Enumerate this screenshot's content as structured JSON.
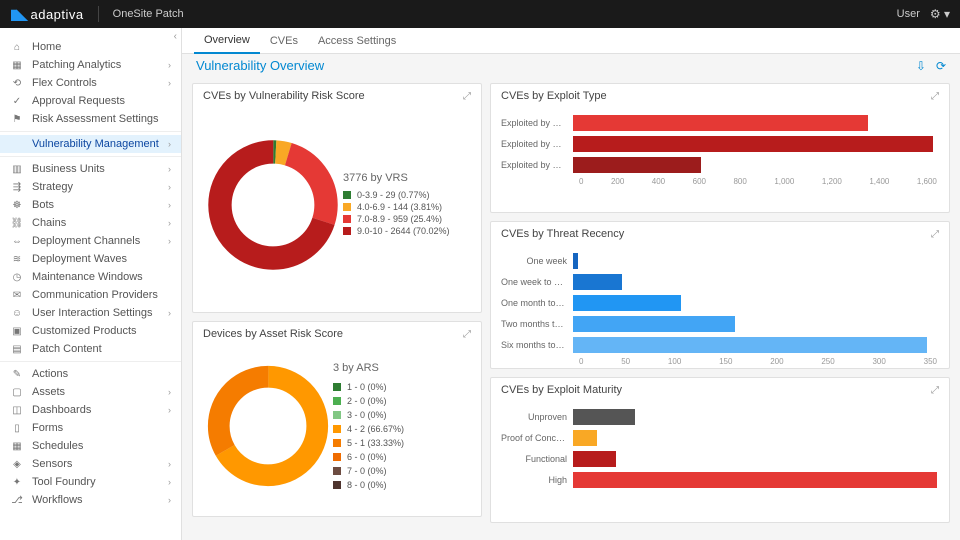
{
  "header": {
    "brand": "adaptiva",
    "app": "OneSite Patch",
    "user": "User"
  },
  "sidebar": {
    "items": [
      {
        "icon": "⌂",
        "label": "Home",
        "chev": false
      },
      {
        "icon": "▦",
        "label": "Patching Analytics",
        "chev": true
      },
      {
        "icon": "⟲",
        "label": "Flex Controls",
        "chev": true
      },
      {
        "icon": "✓",
        "label": "Approval Requests",
        "chev": false
      },
      {
        "icon": "⚑",
        "label": "Risk Assessment Settings",
        "chev": false
      },
      {
        "sep": true
      },
      {
        "icon": "",
        "label": "Vulnerability Management",
        "chev": true,
        "active": true
      },
      {
        "sep": true
      },
      {
        "icon": "▥",
        "label": "Business Units",
        "chev": true
      },
      {
        "icon": "⇶",
        "label": "Strategy",
        "chev": true
      },
      {
        "icon": "☸",
        "label": "Bots",
        "chev": true
      },
      {
        "icon": "⛓",
        "label": "Chains",
        "chev": true
      },
      {
        "icon": "⇔",
        "label": "Deployment Channels",
        "chev": true
      },
      {
        "icon": "≋",
        "label": "Deployment Waves",
        "chev": false
      },
      {
        "icon": "◷",
        "label": "Maintenance Windows",
        "chev": false
      },
      {
        "icon": "✉",
        "label": "Communication Providers",
        "chev": false
      },
      {
        "icon": "☺",
        "label": "User Interaction Settings",
        "chev": true
      },
      {
        "icon": "▣",
        "label": "Customized Products",
        "chev": false
      },
      {
        "icon": "▤",
        "label": "Patch Content",
        "chev": false
      },
      {
        "sep": true
      },
      {
        "icon": "✎",
        "label": "Actions",
        "chev": false
      },
      {
        "icon": "▢",
        "label": "Assets",
        "chev": true
      },
      {
        "icon": "◫",
        "label": "Dashboards",
        "chev": true
      },
      {
        "icon": "▯",
        "label": "Forms",
        "chev": false
      },
      {
        "icon": "▦",
        "label": "Schedules",
        "chev": false
      },
      {
        "icon": "◈",
        "label": "Sensors",
        "chev": true
      },
      {
        "icon": "✦",
        "label": "Tool Foundry",
        "chev": true
      },
      {
        "icon": "⎇",
        "label": "Workflows",
        "chev": true
      }
    ]
  },
  "tabs": [
    "Overview",
    "CVEs",
    "Access Settings"
  ],
  "active_tab": 0,
  "page_title": "Vulnerability Overview",
  "vrs_chart": {
    "title": "CVEs by Vulnerability Risk Score",
    "total_label": "3776 by VRS",
    "items": [
      {
        "label": "0-3.9 - 29 (0.77%)",
        "color": "#2e7d32",
        "pct": 0.77
      },
      {
        "label": "4.0-6.9 - 144 (3.81%)",
        "color": "#f9a825",
        "pct": 3.81
      },
      {
        "label": "7.0-8.9 - 959 (25.4%)",
        "color": "#e53935",
        "pct": 25.4
      },
      {
        "label": "9.0-10 - 2644 (70.02%)",
        "color": "#b71c1c",
        "pct": 70.02
      }
    ]
  },
  "ars_chart": {
    "title": "Devices by Asset Risk Score",
    "total_label": "3 by ARS",
    "items": [
      {
        "label": "1 - 0 (0%)",
        "color": "#2e7d32",
        "pct": 0
      },
      {
        "label": "2 - 0 (0%)",
        "color": "#4caf50",
        "pct": 0
      },
      {
        "label": "3 - 0 (0%)",
        "color": "#81c784",
        "pct": 0
      },
      {
        "label": "4 - 2 (66.67%)",
        "color": "#ff9800",
        "pct": 66.67
      },
      {
        "label": "5 - 1 (33.33%)",
        "color": "#f57c00",
        "pct": 33.33
      },
      {
        "label": "6 - 0 (0%)",
        "color": "#ef6c00",
        "pct": 0
      },
      {
        "label": "7 - 0 (0%)",
        "color": "#6d4c41",
        "pct": 0
      },
      {
        "label": "8 - 0 (0%)",
        "color": "#4e342e",
        "pct": 0
      }
    ]
  },
  "exploit_type": {
    "title": "CVEs by Exploit Type",
    "xmax": 1700,
    "xticks": [
      0,
      200,
      400,
      600,
      800,
      "1,000",
      "1,200",
      "1,400",
      "1,600"
    ],
    "rows": [
      {
        "label": "Exploited by Fra…",
        "value": 1380,
        "color": "#e53935"
      },
      {
        "label": "Exploited by Mal…",
        "value": 1680,
        "color": "#b71c1c"
      },
      {
        "label": "Exploited by Oth…",
        "value": 600,
        "color": "#9c1c1c"
      }
    ]
  },
  "threat_recency": {
    "title": "CVEs by Threat Recency",
    "xmax": 370,
    "xticks": [
      0,
      50,
      100,
      150,
      200,
      250,
      300,
      350
    ],
    "rows": [
      {
        "label": "One week",
        "value": 5,
        "color": "#1565c0"
      },
      {
        "label": "One week to one …",
        "value": 50,
        "color": "#1976d2"
      },
      {
        "label": "One month to two…",
        "value": 110,
        "color": "#2196f3"
      },
      {
        "label": "Two months to si…",
        "value": 165,
        "color": "#42a5f5"
      },
      {
        "label": "Six months to on…",
        "value": 360,
        "color": "#64b5f6"
      }
    ]
  },
  "exploit_maturity": {
    "title": "CVEs by Exploit Maturity",
    "xmax": 420,
    "rows": [
      {
        "label": "Unproven",
        "value": 72,
        "color": "#555555"
      },
      {
        "label": "Proof of Concept",
        "value": 28,
        "color": "#f9a825"
      },
      {
        "label": "Functional",
        "value": 50,
        "color": "#b71c1c"
      },
      {
        "label": "High",
        "value": 420,
        "color": "#e53935"
      }
    ]
  }
}
